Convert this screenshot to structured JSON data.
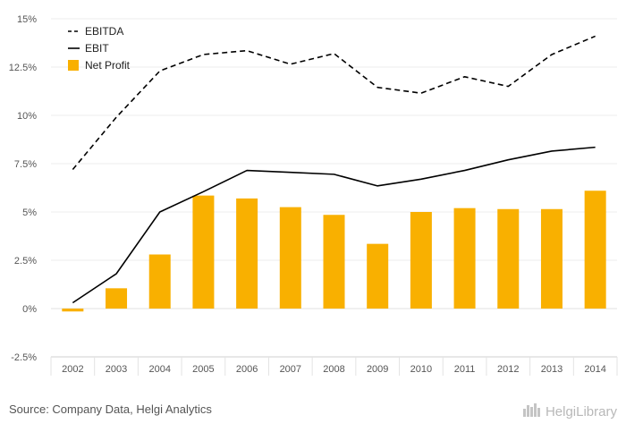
{
  "chart_data": {
    "type": "bar",
    "categories": [
      "2002",
      "2003",
      "2004",
      "2005",
      "2006",
      "2007",
      "2008",
      "2009",
      "2010",
      "2011",
      "2012",
      "2013",
      "2014"
    ],
    "series": [
      {
        "name": "EBITDA",
        "kind": "line",
        "style": "dashed",
        "color": "#000000",
        "values": [
          7.2,
          9.9,
          12.3,
          13.15,
          13.35,
          12.65,
          13.2,
          11.45,
          11.15,
          12.0,
          11.5,
          13.15,
          14.1
        ]
      },
      {
        "name": "EBIT",
        "kind": "line",
        "style": "solid",
        "color": "#000000",
        "values": [
          0.3,
          1.8,
          5.0,
          6.05,
          7.15,
          7.05,
          6.95,
          6.35,
          6.7,
          7.15,
          7.7,
          8.15,
          8.35
        ]
      },
      {
        "name": "Net Profit",
        "kind": "bar",
        "color": "#f9b000",
        "values": [
          -0.15,
          1.05,
          2.8,
          5.85,
          5.7,
          5.25,
          4.85,
          3.35,
          5.0,
          5.2,
          5.15,
          5.15,
          6.1
        ]
      }
    ],
    "y_ticks": [
      "15%",
      "12.5%",
      "10%",
      "7.5%",
      "5%",
      "2.5%",
      "0%",
      "-2.5%"
    ],
    "y_tick_values": [
      15,
      12.5,
      10,
      7.5,
      5,
      2.5,
      0,
      -2.5
    ],
    "ylim": [
      -2.5,
      15
    ],
    "grid": true,
    "legend_position": "top-left"
  },
  "footer": {
    "source": "Source: Company Data, Helgi Analytics",
    "brand": "HelgiLibrary"
  }
}
